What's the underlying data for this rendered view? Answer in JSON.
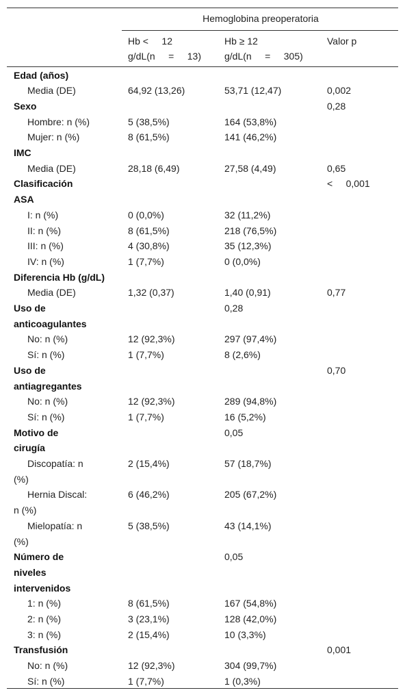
{
  "table": {
    "group_header": "Hemoglobina preoperatoria",
    "columns": [
      [
        "Hb <     12",
        "g/dL(n     =     13)"
      ],
      [
        "Hb ≥ 12",
        "g/dL(n     =     305)"
      ],
      [
        "Valor p"
      ]
    ],
    "rows": [
      {
        "label": [
          "Edad (años)"
        ],
        "section": true,
        "cells": [
          null,
          null,
          null
        ]
      },
      {
        "label": [
          "Media (DE)"
        ],
        "section": false,
        "cells": [
          "64,92 (13,26)",
          "53,71 (12,47)",
          "0,002"
        ]
      },
      {
        "label": [
          "Sexo"
        ],
        "section": true,
        "cells": [
          null,
          null,
          "0,28"
        ]
      },
      {
        "label": [
          "Hombre: n (%)"
        ],
        "section": false,
        "cells": [
          "5 (38,5%)",
          "164 (53,8%)",
          null
        ]
      },
      {
        "label": [
          "Mujer: n (%)"
        ],
        "section": false,
        "cells": [
          "8 (61,5%)",
          "141 (46,2%)",
          null
        ]
      },
      {
        "label": [
          "IMC"
        ],
        "section": true,
        "cells": [
          null,
          null,
          null
        ]
      },
      {
        "label": [
          "Media (DE)"
        ],
        "section": false,
        "cells": [
          "28,18 (6,49)",
          "27,58 (4,49)",
          "0,65"
        ]
      },
      {
        "label": [
          "Clasificación",
          "ASA"
        ],
        "section": true,
        "cells": [
          null,
          null,
          "<     0,001"
        ]
      },
      {
        "label": [
          "I: n (%)"
        ],
        "section": false,
        "cells": [
          "0 (0,0%)",
          "32 (11,2%)",
          null
        ]
      },
      {
        "label": [
          "II: n (%)"
        ],
        "section": false,
        "cells": [
          "8 (61,5%)",
          "218 (76,5%)",
          null
        ]
      },
      {
        "label": [
          "III: n (%)"
        ],
        "section": false,
        "cells": [
          "4 (30,8%)",
          "35 (12,3%)",
          null
        ]
      },
      {
        "label": [
          "IV: n (%)"
        ],
        "section": false,
        "cells": [
          "1 (7,7%)",
          "0 (0,0%)",
          null
        ]
      },
      {
        "label": [
          "Diferencia Hb (g/dL)"
        ],
        "section": true,
        "cells": [
          null,
          null,
          null
        ]
      },
      {
        "label": [
          "Media (DE)"
        ],
        "section": false,
        "cells": [
          "1,32 (0,37)",
          "1,40 (0,91)",
          "0,77"
        ]
      },
      {
        "label": [
          "Uso de",
          "anticoagulantes"
        ],
        "section": true,
        "cells": [
          null,
          "0,28",
          null
        ]
      },
      {
        "label": [
          "No: n (%)"
        ],
        "section": false,
        "cells": [
          "12 (92,3%)",
          "297 (97,4%)",
          null
        ]
      },
      {
        "label": [
          "Sí: n (%)"
        ],
        "section": false,
        "cells": [
          "1 (7,7%)",
          "8 (2,6%)",
          null
        ]
      },
      {
        "label": [
          "Uso de",
          "antiagregantes"
        ],
        "section": true,
        "cells": [
          null,
          null,
          "0,70"
        ]
      },
      {
        "label": [
          "No: n (%)"
        ],
        "section": false,
        "cells": [
          "12 (92,3%)",
          "289 (94,8%)",
          null
        ]
      },
      {
        "label": [
          "Sí: n (%)"
        ],
        "section": false,
        "cells": [
          "1 (7,7%)",
          "16 (5,2%)",
          null
        ]
      },
      {
        "label": [
          "Motivo de",
          "cirugía"
        ],
        "section": true,
        "cells": [
          null,
          "0,05",
          null
        ]
      },
      {
        "label": [
          "Discopatía: n",
          "(%)"
        ],
        "section": false,
        "cells": [
          "2 (15,4%)",
          "57 (18,7%)",
          null
        ]
      },
      {
        "label": [
          "Hernia Discal:",
          "n (%)"
        ],
        "section": false,
        "cells": [
          "6 (46,2%)",
          "205 (67,2%)",
          null
        ]
      },
      {
        "label": [
          "Mielopatía: n",
          "(%)"
        ],
        "section": false,
        "cells": [
          "5 (38,5%)",
          "43 (14,1%)",
          null
        ]
      },
      {
        "label": [
          "Número de",
          "niveles",
          "intervenidos"
        ],
        "section": true,
        "cells": [
          null,
          "0,05",
          null
        ]
      },
      {
        "label": [
          "1: n (%)"
        ],
        "section": false,
        "cells": [
          "8 (61,5%)",
          "167 (54,8%)",
          null
        ]
      },
      {
        "label": [
          "2: n (%)"
        ],
        "section": false,
        "cells": [
          "3 (23,1%)",
          "128 (42,0%)",
          null
        ]
      },
      {
        "label": [
          "3: n (%)"
        ],
        "section": false,
        "cells": [
          "2 (15,4%)",
          "10 (3,3%)",
          null
        ]
      },
      {
        "label": [
          "Transfusión"
        ],
        "section": true,
        "cells": [
          null,
          null,
          "0,001"
        ]
      },
      {
        "label": [
          "No: n (%)"
        ],
        "section": false,
        "cells": [
          "12 (92,3%)",
          "304 (99,7%)",
          null
        ]
      },
      {
        "label": [
          "Sí: n (%)"
        ],
        "section": false,
        "cells": [
          "1 (7,7%)",
          "1 (0,3%)",
          null
        ]
      }
    ]
  }
}
